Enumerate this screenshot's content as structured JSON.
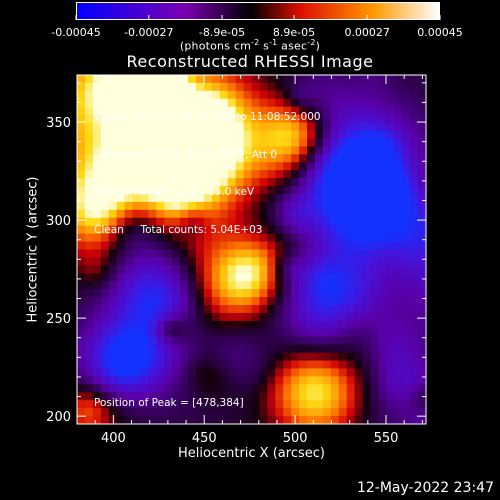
{
  "colorbar": {
    "ticks": [
      "-0.00045",
      "-0.00027",
      "-8.9e-05",
      "8.9e-05",
      "0.00027",
      "0.00045"
    ],
    "tick_values": [
      -0.00045,
      -0.00027,
      -8.9e-05,
      8.9e-05,
      0.00027,
      0.00045
    ],
    "range": [
      -0.00045,
      0.00045
    ],
    "units_line1": "(photons cm",
    "units_exp1": "-2",
    "units_mid1": " s",
    "units_exp2": "-1",
    "units_mid2": " asec",
    "units_exp3": "-2",
    "units_end": ")",
    "colors": [
      "#0000ff",
      "#7a00b0",
      "#000000",
      "#e01000",
      "#ff9a00",
      "#ffffff"
    ]
  },
  "plot": {
    "title": "Reconstructed RHESSI Image",
    "info_lines": [
      "22-Apr-2013 11:04:52.000 to 11:08:52.000",
      "Detectors: 3F 4F 5F 6F 7F 8F, Att 0",
      "Energy Range: 12.0 - 25.0 keV",
      "Clean     Total counts: 5.04E+03"
    ],
    "peak_text": "Position of Peak = [478,384]",
    "xlabel": "Heliocentric X (arcsec)",
    "ylabel": "Heliocentric Y (arcsec)",
    "xlim": [
      380,
      572
    ],
    "ylim": [
      196,
      374
    ],
    "xticks": [
      "400",
      "450",
      "500",
      "550"
    ],
    "xtick_values": [
      400,
      450,
      500,
      550
    ],
    "yticks": [
      "200",
      "250",
      "300",
      "350"
    ],
    "ytick_values": [
      200,
      250,
      300,
      350
    ]
  },
  "timestamp": "12-May-2022 23:47"
}
